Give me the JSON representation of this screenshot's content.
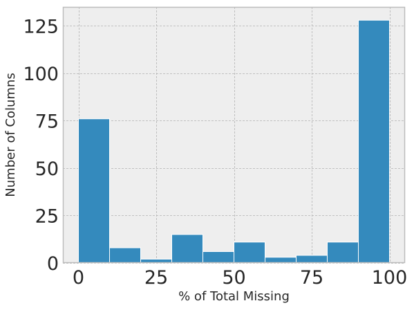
{
  "chart_data": {
    "type": "bar",
    "subtype": "histogram",
    "title": "",
    "xlabel": "% of Total Missing",
    "ylabel": "Number of Columns",
    "xlim": [
      -5,
      105
    ],
    "ylim": [
      0,
      135
    ],
    "bins": [
      {
        "from": 0,
        "to": 10,
        "value": 76
      },
      {
        "from": 10,
        "to": 20,
        "value": 8
      },
      {
        "from": 20,
        "to": 30,
        "value": 2
      },
      {
        "from": 30,
        "to": 40,
        "value": 15
      },
      {
        "from": 40,
        "to": 50,
        "value": 6
      },
      {
        "from": 50,
        "to": 60,
        "value": 11
      },
      {
        "from": 60,
        "to": 70,
        "value": 3
      },
      {
        "from": 70,
        "to": 80,
        "value": 4
      },
      {
        "from": 80,
        "to": 90,
        "value": 11
      },
      {
        "from": 90,
        "to": 100,
        "value": 128
      }
    ],
    "xticks": [
      0,
      25,
      50,
      75,
      100
    ],
    "xtick_labels": [
      "0",
      "25",
      "50",
      "75",
      "100"
    ],
    "yticks": [
      0,
      25,
      50,
      75,
      100,
      125
    ],
    "ytick_labels": [
      "0",
      "25",
      "50",
      "75",
      "100",
      "125"
    ],
    "grid": true,
    "colors": {
      "bar": "#348ABD",
      "bar_edge": "#ffffff",
      "plot_background": "#EEEEEE",
      "grid": "#B2B2B2",
      "frame": "#BCBCBC"
    }
  }
}
